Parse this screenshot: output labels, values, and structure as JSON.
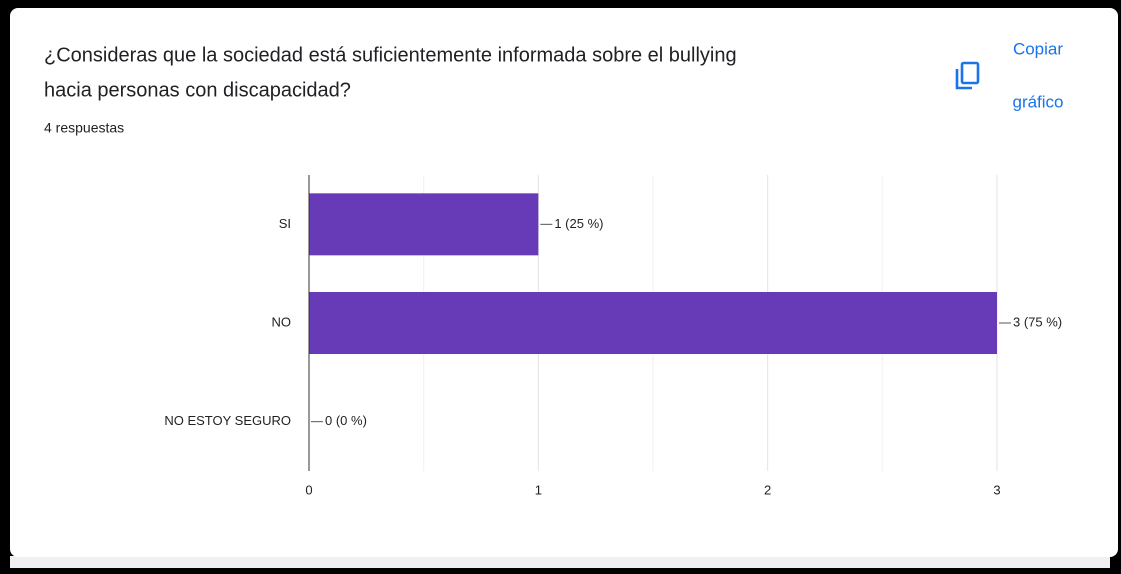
{
  "chart_data": {
    "type": "hbar",
    "title_lines": [
      "¿Consideras que la sociedad está suficientemente informada sobre el bullying",
      "hacia personas con discapacidad?"
    ],
    "subtitle": "4 respuestas",
    "button": [
      "Copiar",
      "gráfico"
    ],
    "categories": [
      "SI",
      "NO",
      "NO ESTOY SEGURO"
    ],
    "values": [
      1,
      3,
      0
    ],
    "value_labels": [
      "1 (25 %)",
      "3 (75 %)",
      "0 (0 %)"
    ],
    "color": "#673ab7",
    "xlim": [
      0,
      3
    ],
    "xticks": [
      0,
      1,
      2,
      3
    ],
    "grid": true,
    "minor_grid": true
  }
}
